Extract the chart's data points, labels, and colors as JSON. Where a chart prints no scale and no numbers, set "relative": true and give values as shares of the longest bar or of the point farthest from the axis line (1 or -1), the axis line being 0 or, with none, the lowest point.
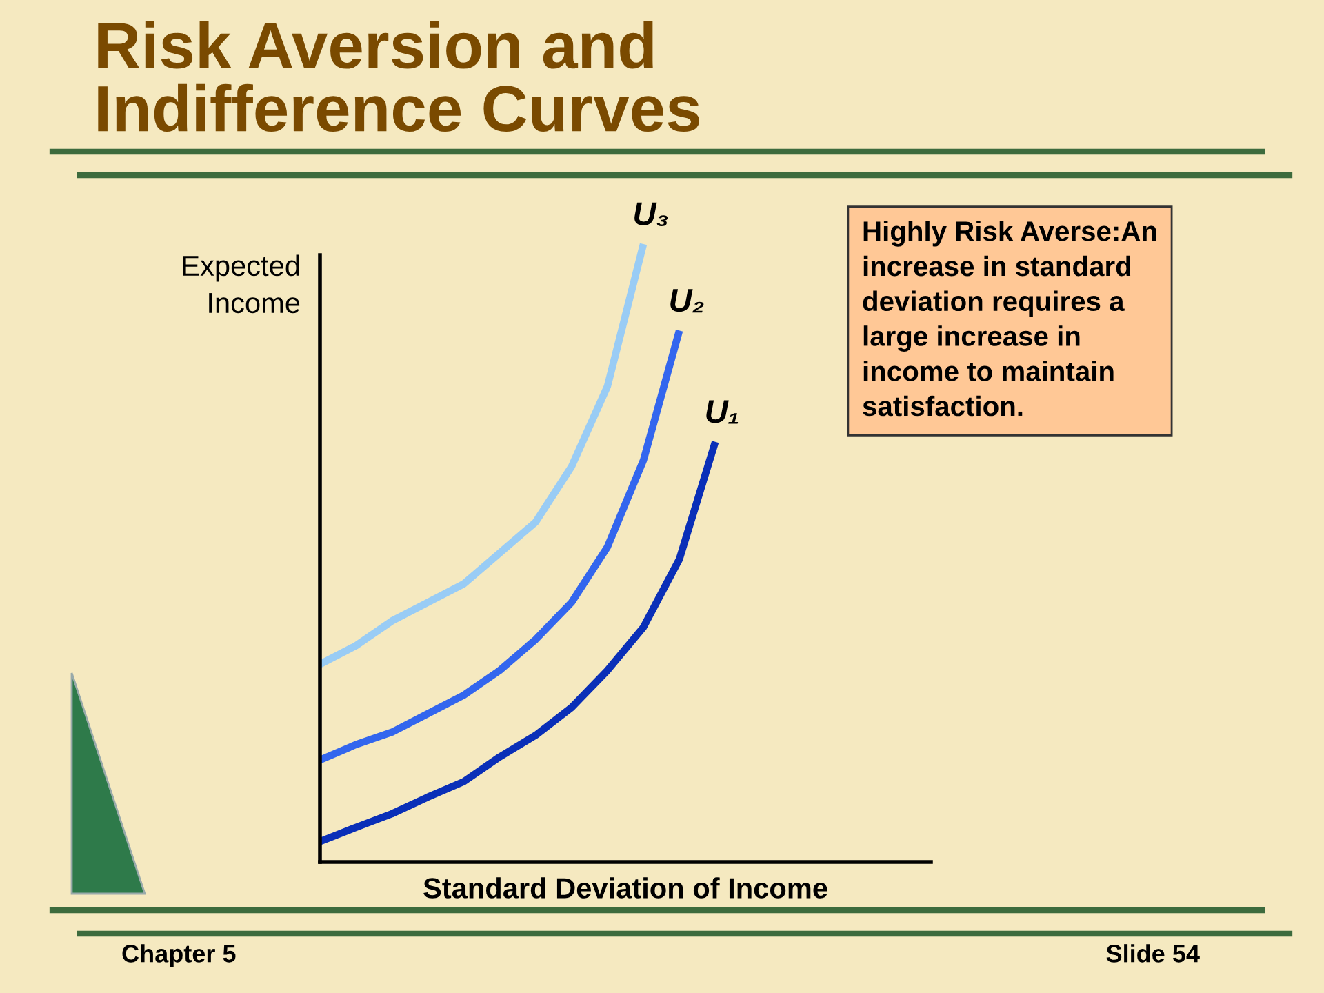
{
  "chart_data": {
    "type": "line",
    "relative": true,
    "title": "Risk Aversion and\nIndifference Curves",
    "xlabel": "Standard Deviation of Income",
    "ylabel": "Expected\nIncome",
    "categories": [
      null,
      null,
      null,
      null,
      null,
      null,
      null,
      null,
      null,
      null,
      null,
      null,
      null,
      null,
      null,
      null,
      null,
      null
    ],
    "series": [
      {
        "name": "U₃",
        "color": "#99ccf5",
        "values": [
          0.32,
          0.35,
          0.39,
          0.42,
          0.45,
          0.5,
          0.55,
          0.64,
          0.77,
          1.0,
          null,
          null,
          null,
          null,
          null,
          null,
          null,
          null
        ]
      },
      {
        "name": "U₂",
        "color": "#3366ee",
        "values": [
          0.165,
          0.19,
          0.21,
          0.24,
          0.27,
          0.31,
          0.36,
          0.42,
          0.51,
          0.65,
          0.86,
          null,
          null,
          null,
          null,
          null,
          null,
          null
        ]
      },
      {
        "name": "U₁",
        "color": "#0a2fb8",
        "values": [
          0.033,
          0.056,
          0.078,
          0.105,
          0.13,
          0.17,
          0.205,
          0.25,
          0.31,
          0.38,
          0.49,
          0.68,
          null,
          null,
          null,
          null,
          null,
          null
        ]
      }
    ],
    "annotations": [
      "Highly Risk Averse:An\nincrease in standard\ndeviation requires a\nlarge increase in\nincome to maintain\nsatisfaction.",
      "Chapter 5",
      "Slide 54"
    ],
    "marker": "none",
    "line_style": "solid"
  }
}
